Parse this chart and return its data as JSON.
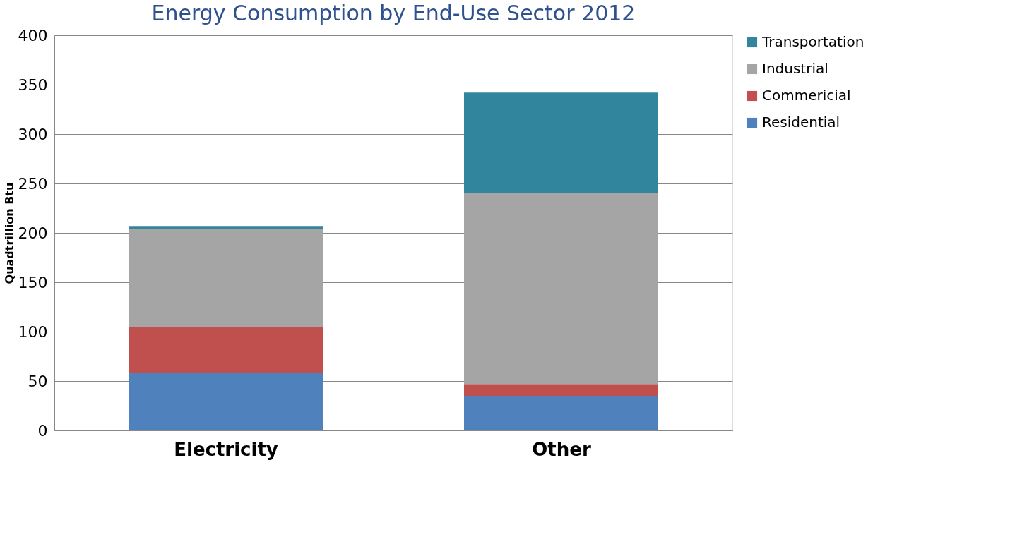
{
  "chart_data": {
    "type": "bar",
    "title": "Energy Consumption by End-Use Sector 2012",
    "ylabel": "Quadtrillion Btu",
    "categories": [
      "Electricity",
      "Other"
    ],
    "stacked": true,
    "series": [
      {
        "name": "Residential",
        "color": "#4f81bd",
        "values": [
          58,
          35
        ]
      },
      {
        "name": "Commericial",
        "color": "#c0504d",
        "values": [
          47,
          12
        ]
      },
      {
        "name": "Industrial",
        "color": "#a5a5a5",
        "values": [
          99,
          193
        ]
      },
      {
        "name": "Transportation",
        "color": "#31859c",
        "values": [
          3,
          102
        ]
      }
    ],
    "ylim": [
      0,
      400
    ],
    "yticks": [
      0,
      50,
      100,
      150,
      200,
      250,
      300,
      350,
      400
    ],
    "grid": "y",
    "legend": "right"
  }
}
